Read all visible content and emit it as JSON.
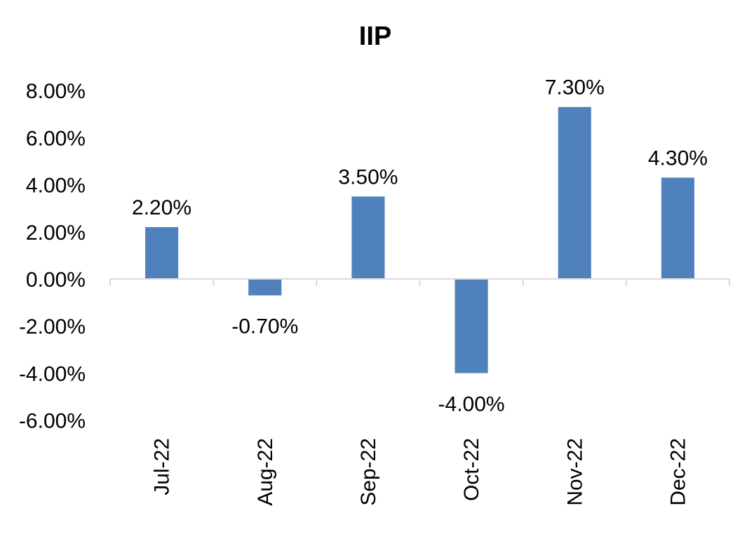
{
  "chart_data": {
    "type": "bar",
    "title": "IIP",
    "xlabel": "",
    "ylabel": "",
    "categories": [
      "Jul-22",
      "Aug-22",
      "Sep-22",
      "Oct-22",
      "Nov-22",
      "Dec-22"
    ],
    "values": [
      2.2,
      -0.7,
      3.5,
      -4.0,
      7.3,
      4.3
    ],
    "data_labels": [
      "2.20%",
      "-0.70%",
      "3.50%",
      "-4.00%",
      "7.30%",
      "4.30%"
    ],
    "ylim": [
      -6,
      8
    ],
    "yticks": [
      8,
      6,
      4,
      2,
      0,
      -2,
      -4,
      -6
    ],
    "ytick_labels": [
      "8.00%",
      "6.00%",
      "4.00%",
      "2.00%",
      "0.00%",
      "-2.00%",
      "-4.00%",
      "-6.00%"
    ],
    "bar_color": "#4F81BD",
    "axis_color": "#D9D9D9",
    "grid": false,
    "legend": "none"
  }
}
